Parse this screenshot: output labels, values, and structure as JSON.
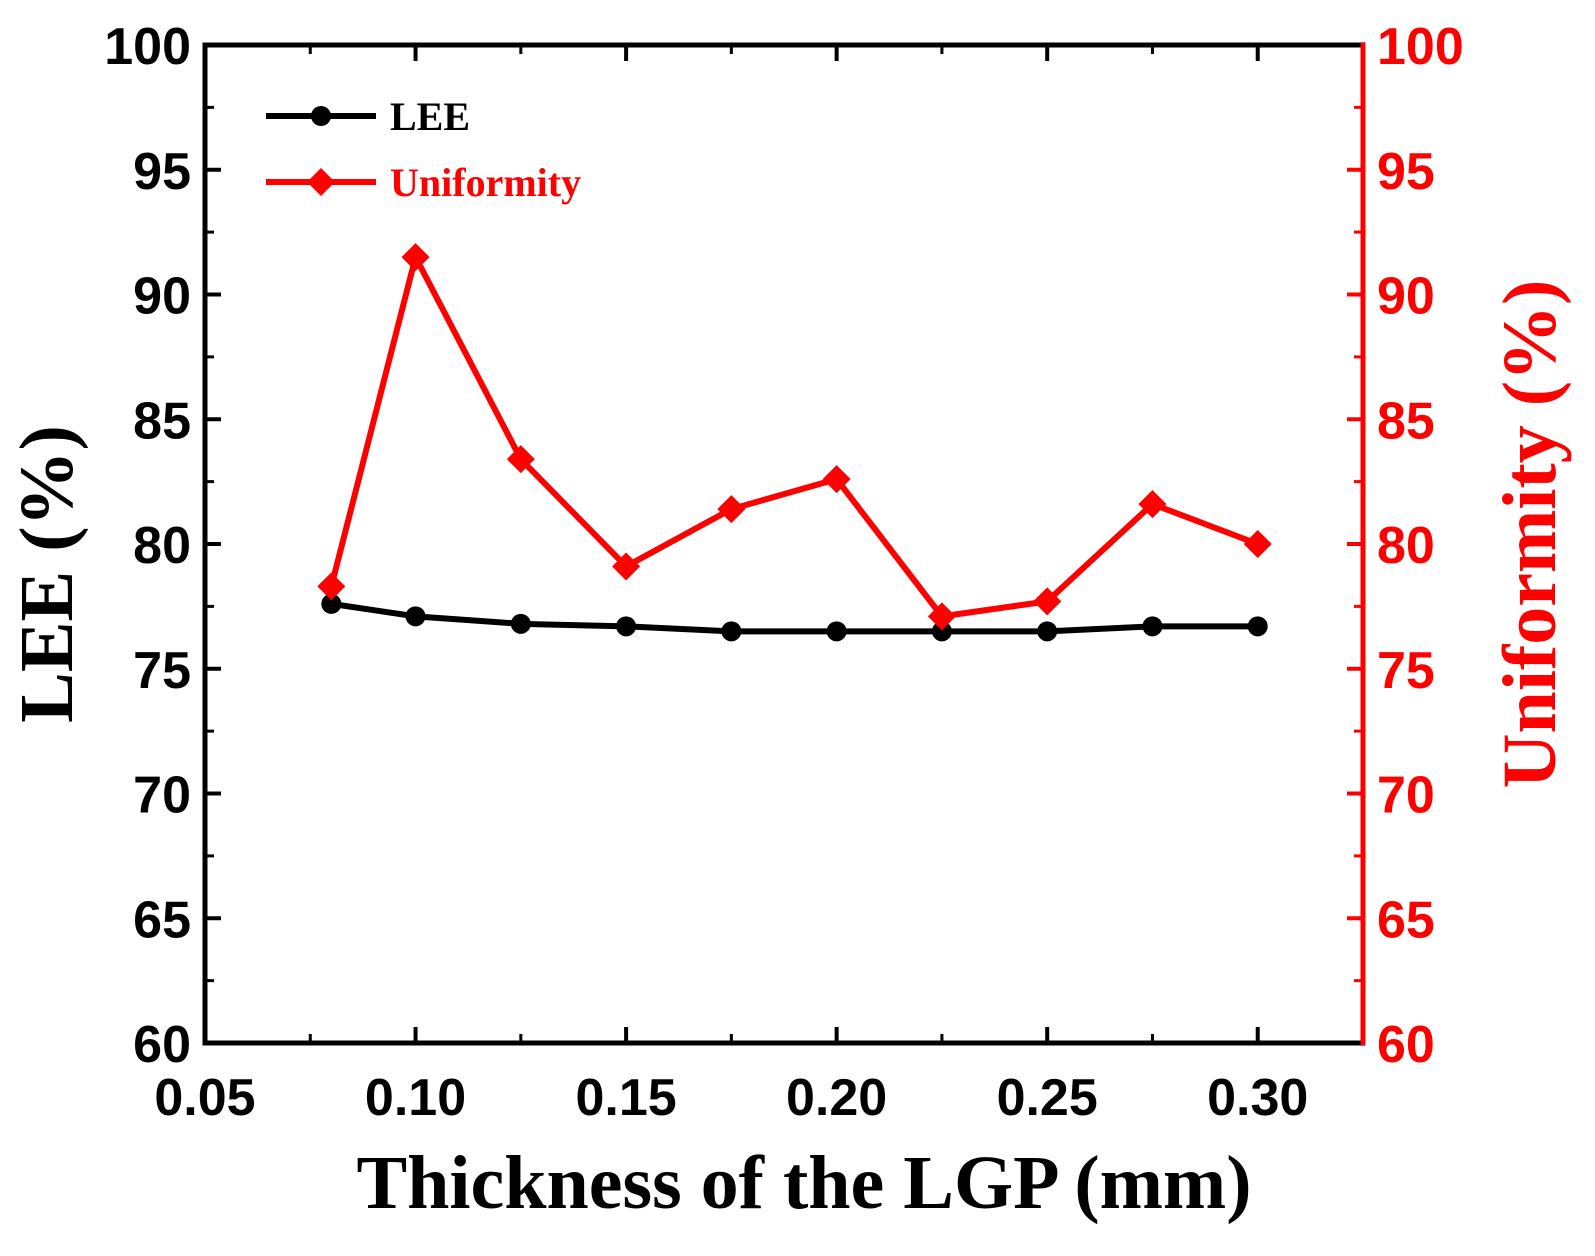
{
  "chart_data": {
    "type": "line",
    "title": "",
    "xlabel": "Thickness of the LGP (mm)",
    "ylabel_left": "LEE (%)",
    "ylabel_right": "Uniformity (%)",
    "xlim": [
      0.05,
      0.325
    ],
    "ylim_left": [
      60,
      100
    ],
    "ylim_right": [
      60,
      100
    ],
    "x_ticks": [
      "0.05",
      "0.10",
      "0.15",
      "0.20",
      "0.25",
      "0.30"
    ],
    "y_ticks_left": [
      "60",
      "65",
      "70",
      "75",
      "80",
      "85",
      "90",
      "95",
      "100"
    ],
    "y_ticks_right": [
      "60",
      "65",
      "70",
      "75",
      "80",
      "85",
      "90",
      "95",
      "100"
    ],
    "legend_position": "top-left",
    "grid": false,
    "x": [
      0.08,
      0.1,
      0.125,
      0.15,
      0.175,
      0.2,
      0.225,
      0.25,
      0.275,
      0.3
    ],
    "series": [
      {
        "name": "LEE",
        "axis": "left",
        "color": "#000000",
        "marker": "circle",
        "values": [
          77.6,
          77.1,
          76.8,
          76.7,
          76.5,
          76.5,
          76.5,
          76.5,
          76.7,
          76.7
        ]
      },
      {
        "name": "Uniformity",
        "axis": "right",
        "color": "#ff0000",
        "marker": "diamond",
        "values": [
          78.3,
          91.5,
          83.4,
          79.1,
          81.4,
          82.6,
          77.1,
          77.7,
          81.6,
          80.0
        ]
      }
    ]
  }
}
